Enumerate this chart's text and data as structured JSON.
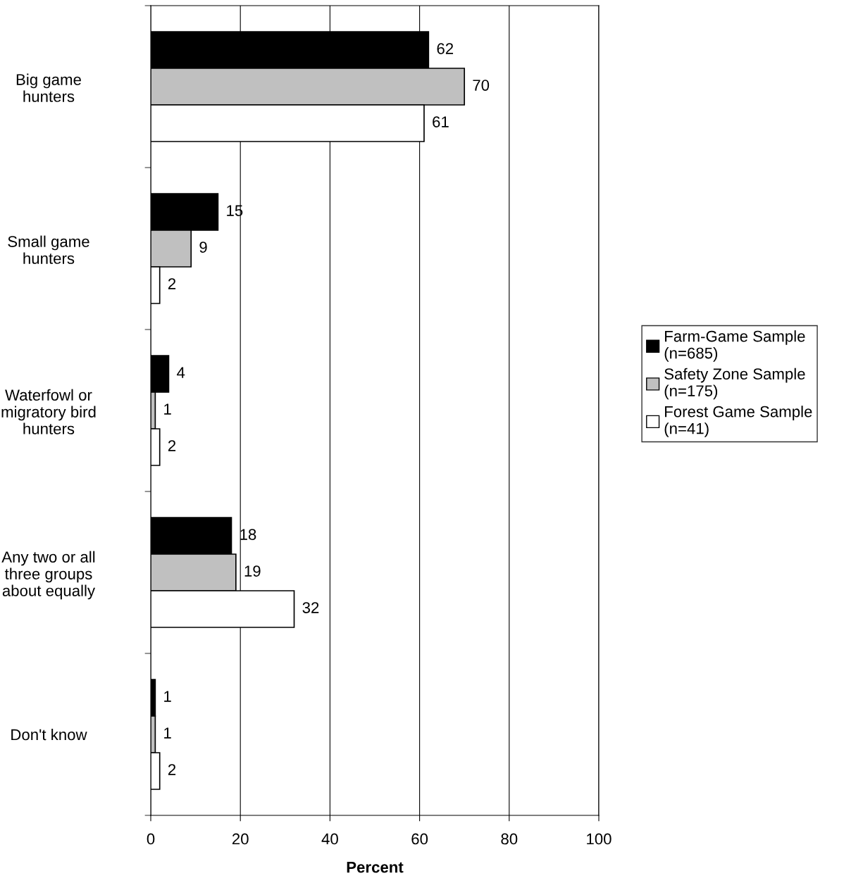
{
  "chart_data": {
    "type": "bar",
    "orientation": "horizontal",
    "xlabel": "Percent",
    "categories": [
      "Big game\nhunters",
      "Small game\nhunters",
      "Waterfowl or\nmigratory bird\nhunters",
      "Any two or all\nthree groups\nabout equally",
      "Don't know"
    ],
    "series": [
      {
        "name": "Farm-Game Sample\n(n=685)",
        "color": "#000000",
        "values": [
          62,
          15,
          4,
          18,
          1
        ]
      },
      {
        "name": "Safety Zone Sample\n(n=175)",
        "color": "#c0c0c0",
        "values": [
          70,
          9,
          1,
          19,
          1
        ]
      },
      {
        "name": "Forest Game Sample\n(n=41)",
        "color": "#ffffff",
        "values": [
          61,
          2,
          2,
          32,
          2
        ]
      }
    ],
    "xlim": [
      0,
      100
    ],
    "xticks": [
      0,
      20,
      40,
      60,
      80,
      100
    ],
    "grid": "x",
    "legend": "right",
    "data_labels": true
  }
}
